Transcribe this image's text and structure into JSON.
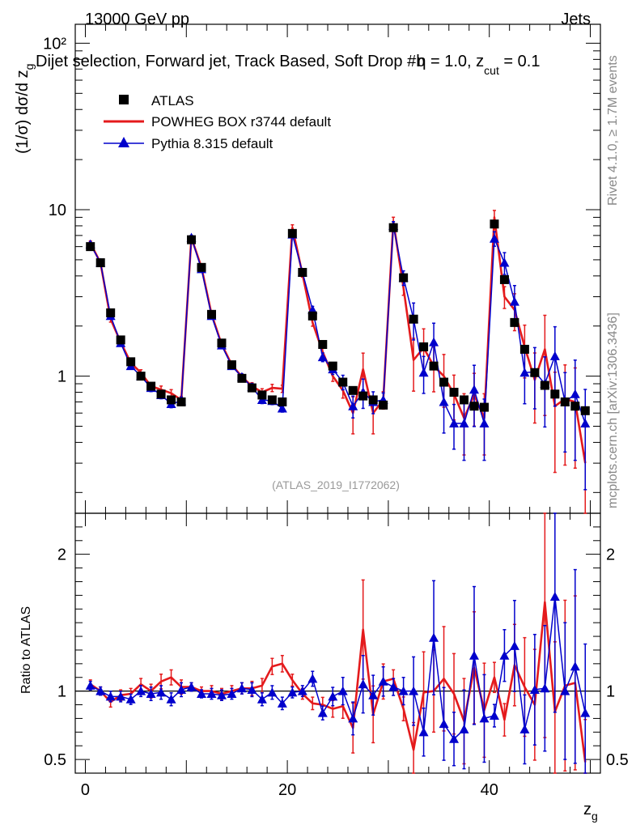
{
  "chart_data": {
    "type": "line",
    "header_left": "13000 GeV pp",
    "header_right": "Jets",
    "title": "Dijet selection, Forward jet, Track Based, Soft Drop #b = 1.0, z_cut = 0.1",
    "title_main": "Dijet selection, Forward jet, Track Based, Soft Drop #b",
    "title_beta": "η",
    "title_eq": " = 1.0, z",
    "title_sub": "cut",
    "title_tail": " = 0.1",
    "ylabel_main": "(1/σ) dσ/d z",
    "ylabel_sub": "g",
    "ratio_ylabel": "Ratio to ATLAS",
    "xlabel_main": "z",
    "xlabel_sub": "g",
    "analysis_id": "(ATLAS_2019_I1772062)",
    "side_text_top": "Rivet 4.1.0, ≥ 1.7M events",
    "side_text_bottom": "mcplots.cern.ch [arXiv:1306.3436]",
    "xlim": [
      -1,
      51
    ],
    "ylim": [
      0.15,
      130
    ],
    "ratio_ylim": [
      0.4,
      2.3
    ],
    "x_ticks": [
      0,
      20,
      40
    ],
    "y_ticks": [
      {
        "value": 1,
        "label": "1"
      },
      {
        "value": 10,
        "label": "10"
      },
      {
        "value": 100,
        "label": "10²"
      }
    ],
    "ratio_ticks": [
      {
        "value": 0.5,
        "label": "0.5"
      },
      {
        "value": 1,
        "label": "1"
      },
      {
        "value": 2,
        "label": "2"
      }
    ],
    "legend": [
      {
        "name": "ATLAS",
        "style": "square",
        "color": "#000000"
      },
      {
        "name": "POWHEG BOX r3744 default",
        "style": "line",
        "color": "#e41a1c"
      },
      {
        "name": "Pythia 8.315 default",
        "style": "triangle",
        "color": "#0000cc"
      }
    ],
    "x": [
      0.5,
      1.5,
      2.5,
      3.5,
      4.5,
      5.5,
      6.5,
      7.5,
      8.5,
      9.5,
      10.5,
      11.5,
      12.5,
      13.5,
      14.5,
      15.5,
      16.5,
      17.5,
      18.5,
      19.5,
      20.5,
      21.5,
      22.5,
      23.5,
      24.5,
      25.5,
      26.5,
      27.5,
      28.5,
      29.5,
      30.5,
      31.5,
      32.5,
      33.5,
      34.5,
      35.5,
      36.5,
      37.5,
      38.5,
      39.5,
      40.5,
      41.5,
      42.5,
      43.5,
      44.5,
      45.5,
      46.5,
      47.5,
      48.5,
      49.5
    ],
    "series": [
      {
        "name": "ATLAS",
        "color": "#000000",
        "values": [
          6.0,
          4.8,
          2.4,
          1.65,
          1.22,
          1.0,
          0.87,
          0.78,
          0.72,
          0.7,
          6.6,
          4.5,
          2.35,
          1.58,
          1.17,
          0.97,
          0.85,
          0.77,
          0.72,
          0.7,
          7.2,
          4.2,
          2.3,
          1.55,
          1.15,
          0.92,
          0.82,
          0.76,
          0.72,
          0.67,
          7.8,
          3.9,
          2.2,
          1.5,
          1.15,
          0.92,
          0.8,
          0.72,
          0.66,
          0.65,
          8.2,
          3.8,
          2.1,
          1.45,
          1.05,
          0.88,
          0.78,
          0.7,
          0.66,
          0.62
        ]
      },
      {
        "name": "POWHEG BOX r3744 default",
        "color": "#e41a1c",
        "values": [
          6.3,
          4.8,
          2.2,
          1.6,
          1.2,
          1.05,
          0.87,
          0.83,
          0.79,
          0.72,
          6.8,
          4.5,
          2.35,
          1.55,
          1.17,
          0.99,
          0.87,
          0.8,
          0.85,
          0.84,
          7.8,
          4.1,
          2.1,
          1.4,
          1.0,
          0.82,
          0.6,
          1.1,
          0.6,
          0.72,
          8.5,
          3.4,
          1.25,
          1.48,
          1.15,
          1.0,
          0.78,
          0.56,
          0.77,
          0.56,
          9.0,
          3.0,
          2.5,
          1.5,
          0.95,
          1.45,
          0.66,
          0.73,
          0.7,
          0.3
        ],
        "err": [
          0.03,
          0.03,
          0.04,
          0.04,
          0.04,
          0.04,
          0.05,
          0.05,
          0.05,
          0.05,
          0.03,
          0.03,
          0.04,
          0.04,
          0.04,
          0.04,
          0.05,
          0.05,
          0.05,
          0.05,
          0.04,
          0.04,
          0.05,
          0.06,
          0.07,
          0.1,
          0.25,
          0.25,
          0.25,
          0.12,
          0.06,
          0.1,
          0.35,
          0.3,
          0.3,
          0.35,
          0.3,
          0.4,
          0.35,
          0.4,
          0.1,
          0.15,
          0.25,
          0.35,
          0.45,
          0.6,
          0.6,
          0.6,
          0.6,
          0.65
        ]
      },
      {
        "name": "Pythia 8.315 default",
        "color": "#0000cc",
        "values": [
          6.2,
          4.8,
          2.3,
          1.58,
          1.15,
          1.0,
          0.85,
          0.77,
          0.68,
          0.71,
          6.8,
          4.4,
          2.3,
          1.53,
          1.15,
          0.99,
          0.86,
          0.72,
          0.71,
          0.64,
          7.1,
          4.2,
          2.5,
          1.3,
          1.1,
          0.92,
          0.66,
          0.8,
          0.7,
          0.72,
          8.0,
          3.9,
          2.2,
          1.05,
          1.6,
          0.7,
          0.52,
          0.52,
          0.83,
          0.52,
          6.7,
          4.8,
          2.8,
          1.05,
          1.06,
          0.9,
          1.32,
          0.7,
          0.78,
          0.52
        ],
        "err": [
          0.03,
          0.03,
          0.04,
          0.04,
          0.04,
          0.04,
          0.05,
          0.05,
          0.05,
          0.05,
          0.03,
          0.03,
          0.04,
          0.04,
          0.04,
          0.04,
          0.05,
          0.05,
          0.05,
          0.05,
          0.04,
          0.04,
          0.05,
          0.06,
          0.07,
          0.1,
          0.15,
          0.2,
          0.15,
          0.1,
          0.06,
          0.1,
          0.25,
          0.25,
          0.3,
          0.35,
          0.3,
          0.4,
          0.4,
          0.4,
          0.1,
          0.15,
          0.25,
          0.35,
          0.4,
          0.45,
          0.5,
          0.5,
          0.6,
          0.6
        ]
      }
    ],
    "ratios": [
      {
        "name": "POWHEG BOX r3744 default",
        "values": [
          1.05,
          1.0,
          0.92,
          0.97,
          0.98,
          1.05,
          1.0,
          1.07,
          1.1,
          1.03,
          1.03,
          1.0,
          1.0,
          0.98,
          1.0,
          1.02,
          1.02,
          1.04,
          1.18,
          1.2,
          1.08,
          0.98,
          0.91,
          0.9,
          0.87,
          0.89,
          0.73,
          1.45,
          0.83,
          1.07,
          1.09,
          0.87,
          0.57,
          0.99,
          1.0,
          1.09,
          0.98,
          0.78,
          1.17,
          0.86,
          1.1,
          0.79,
          1.19,
          1.03,
          0.9,
          1.65,
          0.85,
          1.04,
          1.06,
          0.48
        ]
      },
      {
        "name": "Pythia 8.315 default",
        "values": [
          1.04,
          1.0,
          0.96,
          0.96,
          0.94,
          1.0,
          0.98,
          0.99,
          0.94,
          1.01,
          1.03,
          0.98,
          0.98,
          0.97,
          0.98,
          1.02,
          1.01,
          0.94,
          0.99,
          0.91,
          0.99,
          1.0,
          1.09,
          0.84,
          0.96,
          1.0,
          0.8,
          1.05,
          0.97,
          1.07,
          1.03,
          1.0,
          1.0,
          0.7,
          1.39,
          0.76,
          0.65,
          0.72,
          1.26,
          0.8,
          0.82,
          1.26,
          1.33,
          0.72,
          1.01,
          1.02,
          1.69,
          1.0,
          1.18,
          0.84
        ]
      }
    ]
  }
}
